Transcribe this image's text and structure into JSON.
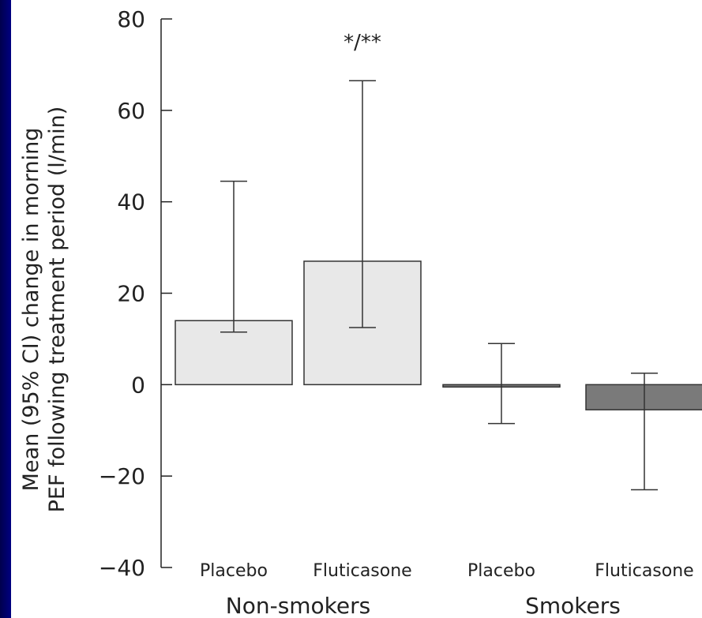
{
  "chart_data": {
    "type": "bar",
    "title": "",
    "ylabel_line1": "Mean (95% CI) change in morning",
    "ylabel_line2": "PEF following treatment period (l/min)",
    "ylim": [
      -40,
      80
    ],
    "yticks": [
      80,
      60,
      40,
      20,
      0,
      -20,
      -40
    ],
    "ytick_labels": [
      "80",
      "60",
      "40",
      "20",
      "0",
      "−20",
      "−40"
    ],
    "groups": [
      "Non-smokers",
      "Smokers"
    ],
    "bars": [
      {
        "group": "Non-smokers",
        "category": "Placebo",
        "value": 14,
        "ci_low": 11.5,
        "ci_high": 44.5,
        "color": "#e8e8e8"
      },
      {
        "group": "Non-smokers",
        "category": "Fluticasone",
        "value": 27,
        "ci_low": 12.5,
        "ci_high": 66.5,
        "color": "#e8e8e8"
      },
      {
        "group": "Smokers",
        "category": "Placebo",
        "value": -0.5,
        "ci_low": -8.5,
        "ci_high": 9,
        "color": "#7a7a7a"
      },
      {
        "group": "Smokers",
        "category": "Fluticasone",
        "value": -5.5,
        "ci_low": -23,
        "ci_high": 2.5,
        "color": "#7a7a7a"
      }
    ],
    "annotations": [
      {
        "text": "*/**",
        "bar": 1
      }
    ]
  }
}
